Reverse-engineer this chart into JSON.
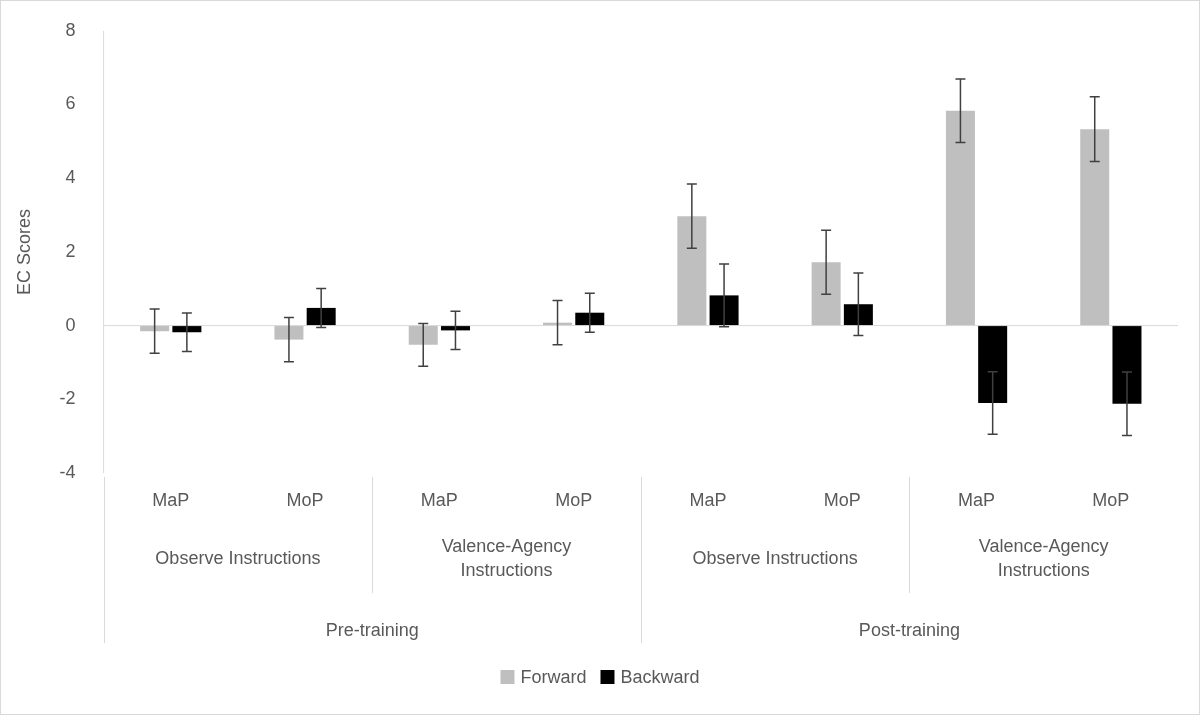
{
  "chart_data": {
    "type": "bar",
    "ylabel": "EC Scores",
    "categories": [
      "MaP",
      "MoP",
      "MaP",
      "MoP",
      "MaP",
      "MoP",
      "MaP",
      "MoP"
    ],
    "series": [
      {
        "name": "Forward",
        "color": "#bfbfbf",
        "values": [
          -0.15,
          -0.38,
          -0.52,
          0.08,
          2.97,
          1.72,
          5.83,
          5.33
        ],
        "errors": [
          0.6,
          0.6,
          0.58,
          0.6,
          0.87,
          0.87,
          0.86,
          0.88
        ]
      },
      {
        "name": "Backward",
        "color": "#000000",
        "values": [
          -0.18,
          0.48,
          -0.13,
          0.35,
          0.82,
          0.58,
          -2.1,
          -2.12
        ],
        "errors": [
          0.52,
          0.53,
          0.52,
          0.53,
          0.85,
          0.85,
          0.85,
          0.86
        ]
      }
    ],
    "ylim": [
      -4,
      8
    ],
    "yticks": [
      -4,
      -2,
      0,
      2,
      4,
      6,
      8
    ],
    "legend": "bottom",
    "annotations": [
      "Observe Instructions",
      "Valence-Agency Instructions",
      "Observe Instructions",
      "Valence-Agency Instructions",
      "Pre-training",
      "Post-training"
    ]
  }
}
